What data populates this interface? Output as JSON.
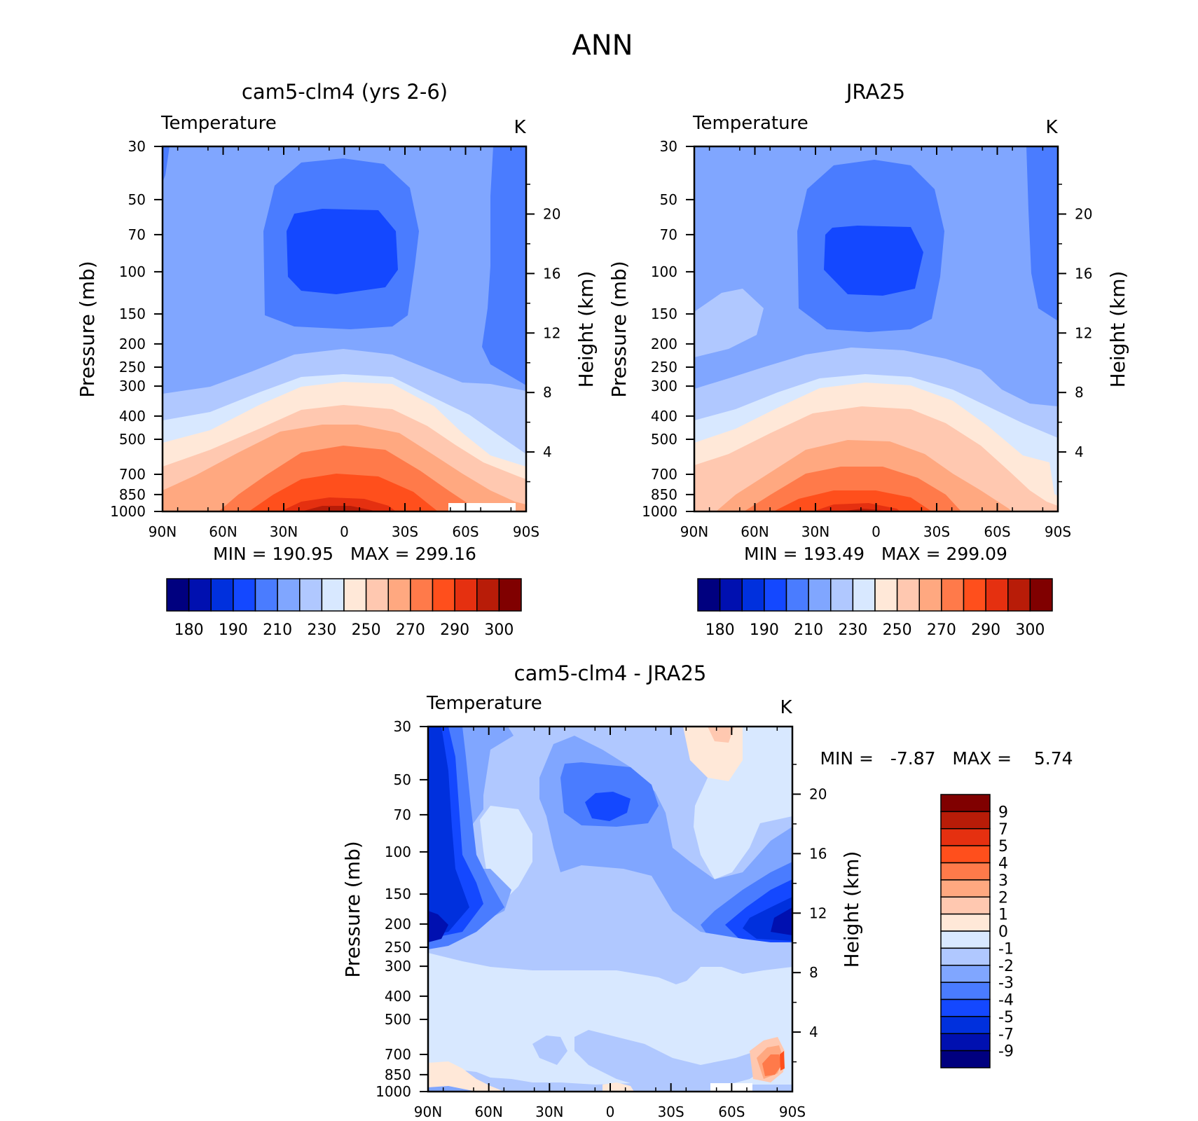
{
  "title": "ANN",
  "colors": {
    "abs": [
      "#00007f",
      "#0010b0",
      "#0030dd",
      "#1448ff",
      "#4a7cff",
      "#80a6ff",
      "#b0c8ff",
      "#d8e8ff",
      "#ffe8d8",
      "#ffc8b0",
      "#ffa880",
      "#ff7a4a",
      "#ff4f1c",
      "#e53010",
      "#b81c08",
      "#800000"
    ],
    "diff": [
      "#00007f",
      "#0010b0",
      "#0030dd",
      "#1448ff",
      "#4a7cff",
      "#80a6ff",
      "#b0c8ff",
      "#d8e8ff",
      "#ffe8d8",
      "#ffc8b0",
      "#ffa880",
      "#ff7a4a",
      "#ff4f1c",
      "#e53010",
      "#b81c08",
      "#800000"
    ]
  },
  "chart_data": [
    {
      "type": "heatmap",
      "title": "cam5-clm4 (yrs 2-6)",
      "subtitle": "Temperature",
      "units": "K",
      "ylabel": "Pressure (mb)",
      "ylabel_right": "Height (km)",
      "x_ticks": [
        "90N",
        "60N",
        "30N",
        "0",
        "30S",
        "60S",
        "90S"
      ],
      "y_ticks": [
        "30",
        "50",
        "70",
        "100",
        "150",
        "200",
        "250",
        "300",
        "400",
        "500",
        "700",
        "850",
        "1000"
      ],
      "y_ticks_right": [
        "20",
        "16",
        "12",
        "8",
        "4"
      ],
      "stats": "MIN = 190.95   MAX = 299.16",
      "min": 190.95,
      "max": 299.16,
      "colorbar_labels": [
        "180",
        "190",
        "210",
        "230",
        "250",
        "270",
        "290",
        "300"
      ]
    },
    {
      "type": "heatmap",
      "title": "JRA25",
      "subtitle": "Temperature",
      "units": "K",
      "ylabel": "Pressure (mb)",
      "ylabel_right": "Height (km)",
      "x_ticks": [
        "90N",
        "60N",
        "30N",
        "0",
        "30S",
        "60S",
        "90S"
      ],
      "y_ticks": [
        "30",
        "50",
        "70",
        "100",
        "150",
        "200",
        "250",
        "300",
        "400",
        "500",
        "700",
        "850",
        "1000"
      ],
      "y_ticks_right": [
        "20",
        "16",
        "12",
        "8",
        "4"
      ],
      "stats": "MIN = 193.49   MAX = 299.09",
      "min": 193.49,
      "max": 299.09,
      "colorbar_labels": [
        "180",
        "190",
        "210",
        "230",
        "250",
        "270",
        "290",
        "300"
      ]
    },
    {
      "type": "heatmap",
      "title": "cam5-clm4 - JRA25",
      "subtitle": "Temperature",
      "units": "K",
      "ylabel": "Pressure (mb)",
      "ylabel_right": "Height (km)",
      "x_ticks": [
        "90N",
        "60N",
        "30N",
        "0",
        "30S",
        "60S",
        "90S"
      ],
      "y_ticks": [
        "30",
        "50",
        "70",
        "100",
        "150",
        "200",
        "250",
        "300",
        "400",
        "500",
        "700",
        "850",
        "1000"
      ],
      "y_ticks_right": [
        "20",
        "16",
        "12",
        "8",
        "4"
      ],
      "stats": "MIN =   -7.87   MAX =    5.74",
      "min": -7.87,
      "max": 5.74,
      "colorbar_labels": [
        "9",
        "7",
        "5",
        "4",
        "3",
        "2",
        "1",
        "0",
        "-1",
        "-2",
        "-3",
        "-4",
        "-5",
        "-7",
        "-9"
      ]
    }
  ]
}
